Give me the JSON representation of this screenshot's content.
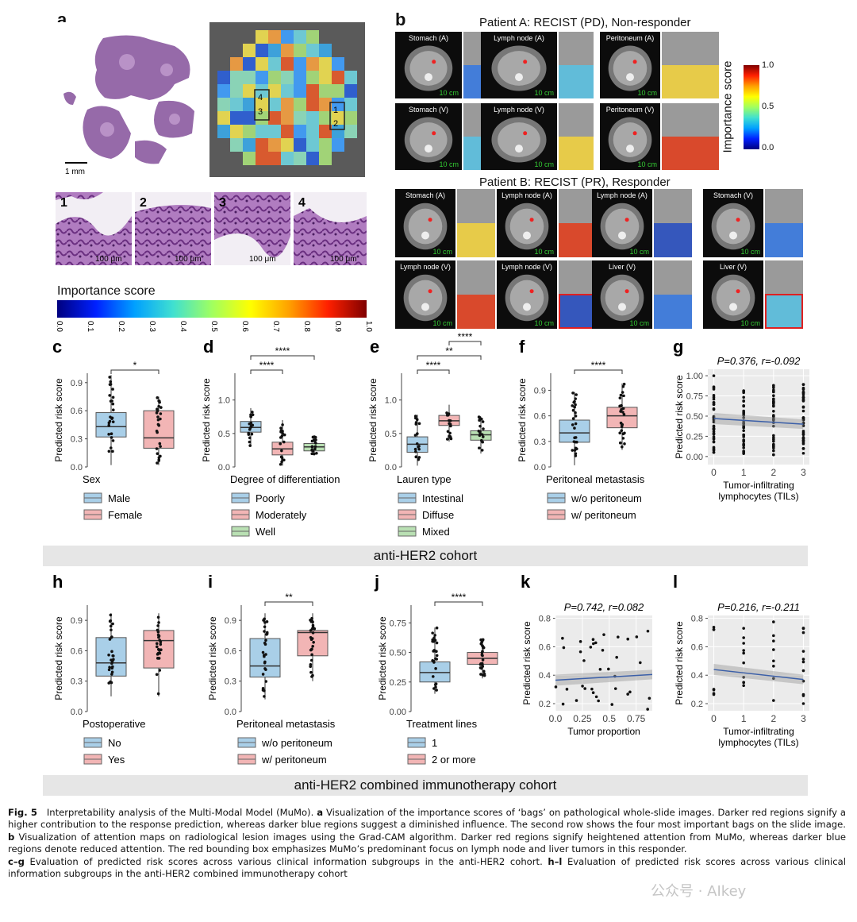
{
  "panel_a": {
    "label": "a",
    "scale_main": "1 mm",
    "region_labels": [
      "4",
      "3",
      "1",
      "2"
    ],
    "tile_labels": [
      "1",
      "2",
      "3",
      "4"
    ],
    "tile_scale": "100 μm",
    "colorbar_title": "Importance score",
    "colorbar_ticks": [
      "0.0",
      "0.1",
      "0.2",
      "0.3",
      "0.4",
      "0.5",
      "0.6",
      "0.7",
      "0.8",
      "0.9",
      "1.0"
    ]
  },
  "panel_b": {
    "label": "b",
    "patient_a_title": "Patient A: RECIST (PD), Non-responder",
    "patient_b_title": "Patient B: RECIST (PR), Responder",
    "scale": "10 cm",
    "patient_a_row1": [
      "Stomach (A)",
      "Lymph node (A)",
      "Peritoneum (A)"
    ],
    "patient_a_row2": [
      "Stomach (V)",
      "Lymph node (V)",
      "Peritoneum (V)"
    ],
    "patient_b_row1": [
      "Stomach (A)",
      "Lymph node (A)",
      "Lymph node (A)",
      "Stomach (V)"
    ],
    "patient_b_row2": [
      "Lymph node (V)",
      "Lymph node (V)",
      "Liver (V)",
      "Liver (V)"
    ],
    "colorbar_title": "Importance score",
    "colorbar_ticks": [
      "1.0",
      "0.5",
      "0.0"
    ]
  },
  "cohort1_label": "anti-HER2 cohort",
  "cohort2_label": "anti-HER2 combined immunotherapy cohort",
  "ylabel": "Predicted risk score",
  "chart_data": [
    {
      "panel": "c",
      "type": "box",
      "ylim": [
        0,
        1.0
      ],
      "yticks": [
        "0.0",
        "0.3",
        "0.6",
        "0.9"
      ],
      "ytick_vals": [
        0,
        0.3,
        0.6,
        0.9
      ],
      "legend_title": "Sex",
      "groups": [
        {
          "name": "Male",
          "color": "#a9cfe8",
          "q1": 0.32,
          "median": 0.43,
          "q3": 0.58,
          "lo": 0.02,
          "hi": 0.98
        },
        {
          "name": "Female",
          "color": "#f2b5b5",
          "q1": 0.2,
          "median": 0.31,
          "q3": 0.6,
          "lo": 0.02,
          "hi": 0.75
        }
      ],
      "sig": [
        {
          "from": 0,
          "to": 1,
          "label": "*"
        }
      ]
    },
    {
      "panel": "d",
      "type": "box",
      "ylim": [
        0,
        1.4
      ],
      "yticks": [
        "0.0",
        "0.5",
        "1.0"
      ],
      "ytick_vals": [
        0,
        0.5,
        1.0
      ],
      "legend_title": "Degree of differentiation",
      "groups": [
        {
          "name": "Poorly",
          "color": "#a9cfe8",
          "q1": 0.52,
          "median": 0.59,
          "q3": 0.68,
          "lo": 0.3,
          "hi": 0.88
        },
        {
          "name": "Moderately",
          "color": "#f2b5b5",
          "q1": 0.18,
          "median": 0.27,
          "q3": 0.37,
          "lo": 0.02,
          "hi": 0.7
        },
        {
          "name": "Well",
          "color": "#b9e0b3",
          "q1": 0.24,
          "median": 0.3,
          "q3": 0.35,
          "lo": 0.18,
          "hi": 0.46
        }
      ],
      "sig": [
        {
          "from": 0,
          "to": 1,
          "label": "****",
          "level": 0
        },
        {
          "from": 0,
          "to": 2,
          "label": "****",
          "level": 1
        }
      ]
    },
    {
      "panel": "e",
      "type": "box",
      "ylim": [
        0,
        1.4
      ],
      "yticks": [
        "0.0",
        "0.5",
        "1.0"
      ],
      "ytick_vals": [
        0,
        0.5,
        1.0
      ],
      "legend_title": "Lauren type",
      "groups": [
        {
          "name": "Intestinal",
          "color": "#a9cfe8",
          "q1": 0.22,
          "median": 0.34,
          "q3": 0.45,
          "lo": 0.02,
          "hi": 0.78
        },
        {
          "name": "Diffuse",
          "color": "#f2b5b5",
          "q1": 0.62,
          "median": 0.69,
          "q3": 0.77,
          "lo": 0.38,
          "hi": 0.93
        },
        {
          "name": "Mixed",
          "color": "#b9e0b3",
          "q1": 0.4,
          "median": 0.48,
          "q3": 0.54,
          "lo": 0.2,
          "hi": 0.75
        }
      ],
      "sig": [
        {
          "from": 0,
          "to": 1,
          "label": "****",
          "level": 0
        },
        {
          "from": 0,
          "to": 2,
          "label": "**",
          "level": 1
        },
        {
          "from": 1,
          "to": 2,
          "label": "****",
          "level": 2
        }
      ]
    },
    {
      "panel": "f",
      "type": "box",
      "ylim": [
        0,
        1.1
      ],
      "yticks": [
        "0.0",
        "0.3",
        "0.6",
        "0.9"
      ],
      "ytick_vals": [
        0,
        0.3,
        0.6,
        0.9
      ],
      "legend_title": "Peritoneal metastasis",
      "groups": [
        {
          "name": "w/o peritoneum",
          "color": "#a9cfe8",
          "q1": 0.29,
          "median": 0.4,
          "q3": 0.55,
          "lo": 0.02,
          "hi": 0.88
        },
        {
          "name": "w/ peritoneum",
          "color": "#f2b5b5",
          "q1": 0.46,
          "median": 0.6,
          "q3": 0.7,
          "lo": 0.2,
          "hi": 0.98
        }
      ],
      "sig": [
        {
          "from": 0,
          "to": 1,
          "label": "****"
        }
      ]
    },
    {
      "panel": "g",
      "type": "scatter",
      "title": "P=0.376, r=-0.092",
      "xlabel": "Tumor-infiltrating lymphocytes (TILs)",
      "xlim": [
        -0.2,
        3.2
      ],
      "ylim": [
        -0.1,
        1.08
      ],
      "xticks": [
        "0",
        "1",
        "2",
        "3"
      ],
      "xtick_vals": [
        0,
        1,
        2,
        3
      ],
      "yticks": [
        "0.00",
        "0.25",
        "0.50",
        "0.75",
        "1.00"
      ],
      "ytick_vals": [
        0,
        0.25,
        0.5,
        0.75,
        1.0
      ],
      "trend": {
        "x": [
          0,
          3
        ],
        "y": [
          0.47,
          0.4
        ]
      }
    },
    {
      "panel": "h",
      "type": "box",
      "ylim": [
        0,
        1.05
      ],
      "yticks": [
        "0.0",
        "0.3",
        "0.6",
        "0.9"
      ],
      "ytick_vals": [
        0,
        0.3,
        0.6,
        0.9
      ],
      "legend_title": "Postoperative",
      "groups": [
        {
          "name": "No",
          "color": "#a9cfe8",
          "q1": 0.35,
          "median": 0.48,
          "q3": 0.73,
          "lo": 0.15,
          "hi": 0.97
        },
        {
          "name": "Yes",
          "color": "#f2b5b5",
          "q1": 0.43,
          "median": 0.7,
          "q3": 0.8,
          "lo": 0.15,
          "hi": 0.97
        }
      ],
      "sig": []
    },
    {
      "panel": "i",
      "type": "box",
      "ylim": [
        0,
        1.05
      ],
      "yticks": [
        "0.0",
        "0.3",
        "0.6",
        "0.9"
      ],
      "ytick_vals": [
        0,
        0.3,
        0.6,
        0.9
      ],
      "legend_title": "Peritoneal metastasis",
      "groups": [
        {
          "name": "w/o peritoneum",
          "color": "#a9cfe8",
          "q1": 0.34,
          "median": 0.45,
          "q3": 0.72,
          "lo": 0.12,
          "hi": 0.97
        },
        {
          "name": "w/ peritoneum",
          "color": "#f2b5b5",
          "q1": 0.55,
          "median": 0.78,
          "q3": 0.8,
          "lo": 0.3,
          "hi": 0.97
        }
      ],
      "sig": [
        {
          "from": 0,
          "to": 1,
          "label": "**"
        }
      ]
    },
    {
      "panel": "j",
      "type": "box",
      "ylim": [
        0,
        0.9
      ],
      "yticks": [
        "0.00",
        "0.25",
        "0.50",
        "0.75"
      ],
      "ytick_vals": [
        0,
        0.25,
        0.5,
        0.75
      ],
      "legend_title": "Treatment lines",
      "groups": [
        {
          "name": "1",
          "color": "#a9cfe8",
          "q1": 0.25,
          "median": 0.33,
          "q3": 0.42,
          "lo": 0.15,
          "hi": 0.71
        },
        {
          "name": "2 or more",
          "color": "#f2b5b5",
          "q1": 0.4,
          "median": 0.45,
          "q3": 0.5,
          "lo": 0.28,
          "hi": 0.62
        }
      ],
      "sig": [
        {
          "from": 0,
          "to": 1,
          "label": "****"
        }
      ]
    },
    {
      "panel": "k",
      "type": "scatter",
      "title": "P=0.742, r=0.082",
      "xlabel": "Tumor proportion",
      "xlim": [
        0,
        0.9
      ],
      "ylim": [
        0.15,
        0.82
      ],
      "xticks": [
        "0.0",
        "0.25",
        "0.5",
        "0.75"
      ],
      "xtick_vals": [
        0,
        0.25,
        0.5,
        0.75
      ],
      "yticks": [
        "0.2",
        "0.4",
        "0.6",
        "0.8"
      ],
      "ytick_vals": [
        0.2,
        0.4,
        0.6,
        0.8
      ],
      "trend": {
        "x": [
          0,
          0.9
        ],
        "y": [
          0.365,
          0.405
        ]
      }
    },
    {
      "panel": "l",
      "type": "scatter",
      "title": "P=0.216, r=-0.211",
      "xlabel": "Tumor-infiltrating lymphocytes (TILs)",
      "xlim": [
        -0.2,
        3.2
      ],
      "ylim": [
        0.15,
        0.82
      ],
      "xticks": [
        "0",
        "1",
        "2",
        "3"
      ],
      "xtick_vals": [
        0,
        1,
        2,
        3
      ],
      "yticks": [
        "0.2",
        "0.4",
        "0.6",
        "0.8"
      ],
      "ytick_vals": [
        0.2,
        0.4,
        0.6,
        0.8
      ],
      "trend": {
        "x": [
          0,
          3
        ],
        "y": [
          0.44,
          0.37
        ]
      }
    }
  ],
  "caption": {
    "fig": "Fig. 5",
    "t1": "Interpretability analysis of the Multi-Modal Model (MuMo).",
    "a": "a",
    "t2": "Visualization of the importance scores of ‘bags’ on pathological whole-slide images. Darker red regions signify a higher contribution to the response prediction, whereas darker blue regions suggest a diminished influence. The second row shows the four most important bags on the slide image.",
    "b": "b",
    "t3": "Visualization of attention maps on radiological lesion images using the Grad-CAM algorithm. Darker red regions signify heightened attention from MuMo, whereas darker blue regions denote reduced attention. The red bounding box emphasizes MuMo’s predominant focus on lymph node and liver tumors in this responder.",
    "cg": "c–g",
    "t4": "Evaluation of predicted risk scores across various clinical information subgroups in the anti-HER2 cohort.",
    "hl": "h–l",
    "t5": "Evaluation of predicted risk scores across various clinical information subgroups in the anti-HER2 combined immunotherapy cohort"
  },
  "watermark": "公众号 · AIkey"
}
